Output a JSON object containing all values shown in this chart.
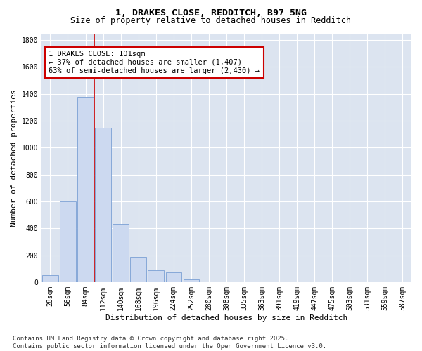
{
  "title": "1, DRAKES CLOSE, REDDITCH, B97 5NG",
  "subtitle": "Size of property relative to detached houses in Redditch",
  "xlabel": "Distribution of detached houses by size in Redditch",
  "ylabel": "Number of detached properties",
  "categories": [
    "28sqm",
    "56sqm",
    "84sqm",
    "112sqm",
    "140sqm",
    "168sqm",
    "196sqm",
    "224sqm",
    "252sqm",
    "280sqm",
    "308sqm",
    "335sqm",
    "363sqm",
    "391sqm",
    "419sqm",
    "447sqm",
    "475sqm",
    "503sqm",
    "531sqm",
    "559sqm",
    "587sqm"
  ],
  "values": [
    50,
    600,
    1380,
    1150,
    430,
    185,
    90,
    70,
    20,
    5,
    2,
    0,
    0,
    0,
    0,
    0,
    0,
    0,
    0,
    0,
    0
  ],
  "bar_color": "#ccd9f0",
  "bar_edge_color": "#7a9fd4",
  "vline_color": "#cc0000",
  "vline_x_index": 2.5,
  "annotation_text": "1 DRAKES CLOSE: 101sqm\n← 37% of detached houses are smaller (1,407)\n63% of semi-detached houses are larger (2,430) →",
  "annotation_box_color": "#ffffff",
  "annotation_box_edge": "#cc0000",
  "ylim": [
    0,
    1850
  ],
  "yticks": [
    0,
    200,
    400,
    600,
    800,
    1000,
    1200,
    1400,
    1600,
    1800
  ],
  "background_color": "#dce4f0",
  "footer_text": "Contains HM Land Registry data © Crown copyright and database right 2025.\nContains public sector information licensed under the Open Government Licence v3.0.",
  "title_fontsize": 9.5,
  "subtitle_fontsize": 8.5,
  "axis_label_fontsize": 8,
  "tick_fontsize": 7,
  "annotation_fontsize": 7.5,
  "footer_fontsize": 6.5
}
